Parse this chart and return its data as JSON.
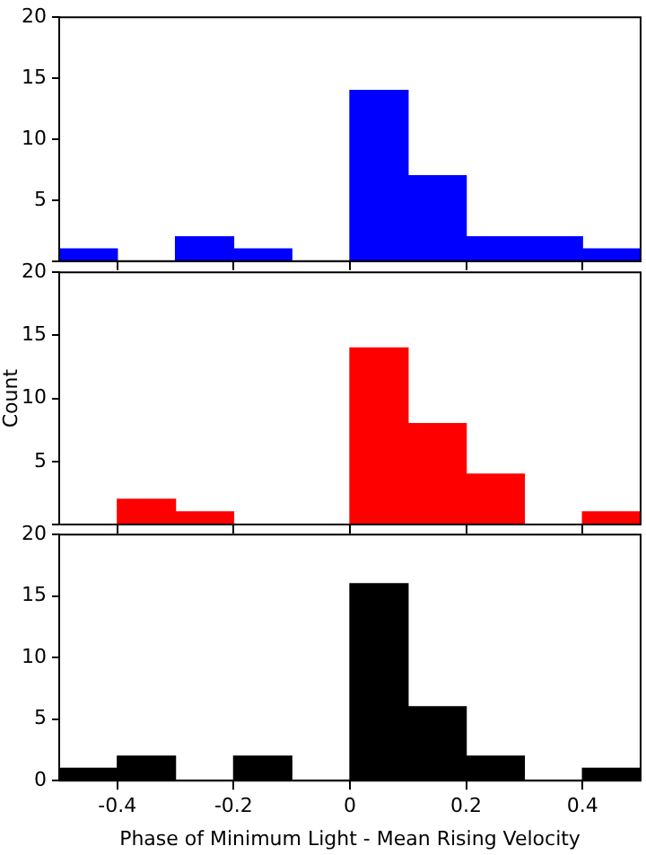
{
  "chart_data": [
    {
      "type": "histogram",
      "bins": [
        -0.5,
        -0.4,
        -0.3,
        -0.2,
        -0.1,
        0,
        0.1,
        0.2,
        0.3,
        0.4,
        0.5
      ],
      "values": [
        1,
        0,
        2,
        1,
        0,
        14,
        7,
        2,
        2,
        1
      ],
      "color": "#0000ff",
      "xlim": [
        -0.5,
        0.5
      ],
      "xticks": [
        -0.4,
        -0.2,
        0,
        0.2,
        0.4
      ],
      "ylim": [
        0,
        20
      ],
      "yticks": [
        {
          "value": 0,
          "label": null
        },
        5,
        10,
        15,
        20
      ],
      "tick_labels": "y"
    },
    {
      "type": "histogram",
      "bins": [
        -0.5,
        -0.4,
        -0.3,
        -0.2,
        -0.1,
        0,
        0.1,
        0.2,
        0.3,
        0.4,
        0.5
      ],
      "values": [
        0,
        2,
        1,
        0,
        0,
        14,
        8,
        4,
        0,
        1
      ],
      "color": "#ff0000",
      "ylabel": "Count",
      "xlim": [
        -0.5,
        0.5
      ],
      "xticks": [
        -0.4,
        -0.2,
        0,
        0.2,
        0.4
      ],
      "ylim": [
        0,
        20
      ],
      "yticks": [
        {
          "value": 0,
          "label": null
        },
        5,
        10,
        15,
        20
      ],
      "tick_labels": "y"
    },
    {
      "type": "histogram",
      "bins": [
        -0.5,
        -0.4,
        -0.3,
        -0.2,
        -0.1,
        0,
        0.1,
        0.2,
        0.3,
        0.4,
        0.5
      ],
      "values": [
        1,
        2,
        0,
        2,
        0,
        16,
        6,
        2,
        0,
        1
      ],
      "color": "#000000",
      "xlabel": "Phase of Minimum Light - Mean Rising Velocity",
      "xlim": [
        -0.5,
        0.5
      ],
      "xticks": [
        -0.4,
        -0.2,
        0,
        0.2,
        0.4
      ],
      "ylim": [
        0,
        20
      ],
      "yticks": [
        0,
        5,
        10,
        15,
        20
      ]
    }
  ]
}
